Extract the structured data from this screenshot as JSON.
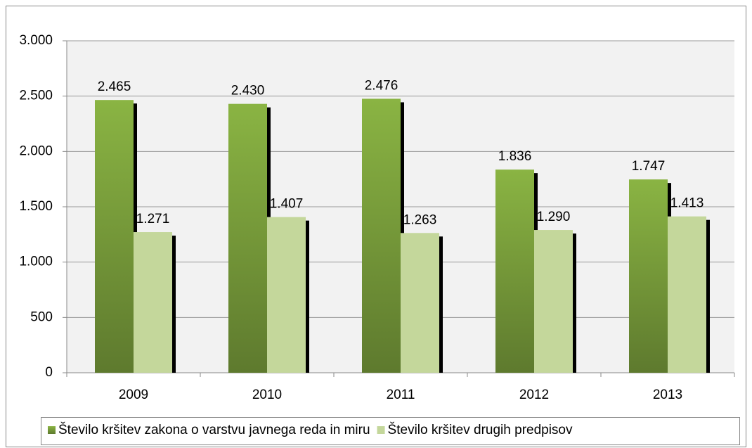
{
  "chart_data": {
    "type": "bar",
    "categories": [
      "2009",
      "2010",
      "2011",
      "2012",
      "2013"
    ],
    "series": [
      {
        "name": "Število kršitev zakona o varstvu javnega reda in miru",
        "color": "#8ab443",
        "values": [
          2465,
          2430,
          2476,
          1836,
          1747
        ],
        "value_labels": [
          "2.465",
          "2.430",
          "2.476",
          "1.836",
          "1.747"
        ]
      },
      {
        "name": "Število kršitev drugih predpisov",
        "color": "#c4d79b",
        "values": [
          1271,
          1407,
          1263,
          1290,
          1413
        ],
        "value_labels": [
          "1.271",
          "1.407",
          "1.263",
          "1.290",
          "1.413"
        ]
      }
    ],
    "ylim": [
      0,
      3000
    ],
    "yticks": [
      {
        "value": 0,
        "label": "0"
      },
      {
        "value": 500,
        "label": "500"
      },
      {
        "value": 1000,
        "label": "1.000"
      },
      {
        "value": 1500,
        "label": "1.500"
      },
      {
        "value": 2000,
        "label": "2.000"
      },
      {
        "value": 2500,
        "label": "2.500"
      },
      {
        "value": 3000,
        "label": "3.000"
      }
    ],
    "grid": true,
    "legend": "bottom"
  }
}
